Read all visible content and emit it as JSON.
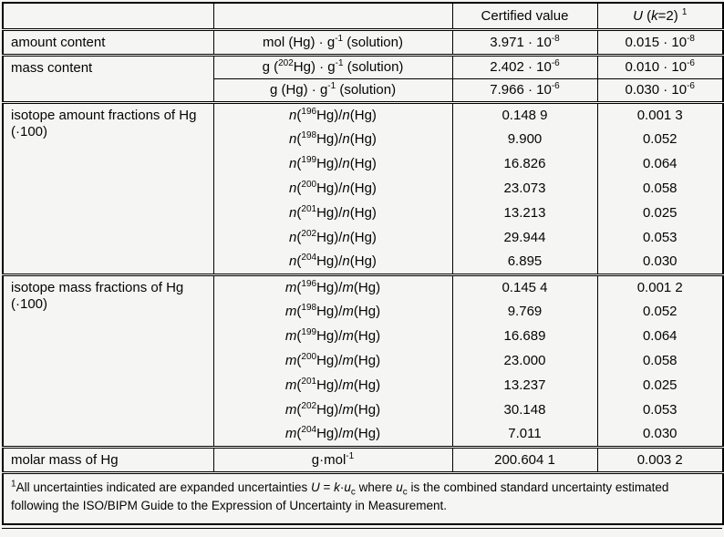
{
  "page": {
    "background_color": "#f5f5f3",
    "border_color": "#000000",
    "text_color": "#050505"
  },
  "table": {
    "header": {
      "property_col": "",
      "unit_col": "",
      "certified_value": "Certified value",
      "uncertainty": "*U* (*k*=2) ^{1}"
    },
    "sections": [
      {
        "label": "amount content",
        "rows": [
          {
            "unit": "mol (Hg) · g^{-1} (solution)",
            "value": "3.971 · 10^{-8}",
            "uncertainty": "0.015 · 10^{-8}"
          }
        ]
      },
      {
        "label": "mass content",
        "rows": [
          {
            "unit": "g (^{202}Hg) · g^{-1} (solution)",
            "value": "2.402 · 10^{-6}",
            "uncertainty": "0.010 · 10^{-6}"
          },
          {
            "unit": "g (Hg) · g^{-1} (solution)",
            "value": "7.966 · 10^{-6}",
            "uncertainty": "0.030 · 10^{-6}"
          }
        ]
      },
      {
        "label": "isotope amount fractions of Hg",
        "label_line2": "(·100)",
        "rows": [
          {
            "unit": "*n*(^{196}Hg)/*n*(Hg)",
            "value": "0.148 9",
            "uncertainty": "0.001 3"
          },
          {
            "unit": "*n*(^{198}Hg)/*n*(Hg)",
            "value": "9.900",
            "uncertainty": "0.052"
          },
          {
            "unit": "*n*(^{199}Hg)/*n*(Hg)",
            "value": "16.826",
            "uncertainty": "0.064"
          },
          {
            "unit": "*n*(^{200}Hg)/*n*(Hg)",
            "value": "23.073",
            "uncertainty": "0.058"
          },
          {
            "unit": "*n*(^{201}Hg)/*n*(Hg)",
            "value": "13.213",
            "uncertainty": "0.025"
          },
          {
            "unit": "*n*(^{202}Hg)/*n*(Hg)",
            "value": "29.944",
            "uncertainty": "0.053"
          },
          {
            "unit": "*n*(^{204}Hg)/*n*(Hg)",
            "value": "6.895",
            "uncertainty": "0.030"
          }
        ]
      },
      {
        "label": "isotope mass fractions of Hg",
        "label_line2": "(·100)",
        "rows": [
          {
            "unit": "*m*(^{196}Hg)/*m*(Hg)",
            "value": "0.145 4",
            "uncertainty": "0.001 2"
          },
          {
            "unit": "*m*(^{198}Hg)/*m*(Hg)",
            "value": "9.769",
            "uncertainty": "0.052"
          },
          {
            "unit": "*m*(^{199}Hg)/*m*(Hg)",
            "value": "16.689",
            "uncertainty": "0.064"
          },
          {
            "unit": "*m*(^{200}Hg)/*m*(Hg)",
            "value": "23.000",
            "uncertainty": "0.058"
          },
          {
            "unit": "*m*(^{201}Hg)/*m*(Hg)",
            "value": "13.237",
            "uncertainty": "0.025"
          },
          {
            "unit": "*m*(^{202}Hg)/*m*(Hg)",
            "value": "30.148",
            "uncertainty": "0.053"
          },
          {
            "unit": "*m*(^{204}Hg)/*m*(Hg)",
            "value": "7.011",
            "uncertainty": "0.030"
          }
        ]
      },
      {
        "label": "molar mass of Hg",
        "rows": [
          {
            "unit": "g·mol^{-1}",
            "value": "200.604 1",
            "uncertainty": "0.003 2"
          }
        ]
      }
    ],
    "footnote": "^{1}All uncertainties indicated are expanded uncertainties *U* = *k*·*u*_{c} where *u*_{c} is the combined standard uncertainty estimated following the ISO/BIPM Guide to the Expression of Uncertainty in Measurement."
  }
}
